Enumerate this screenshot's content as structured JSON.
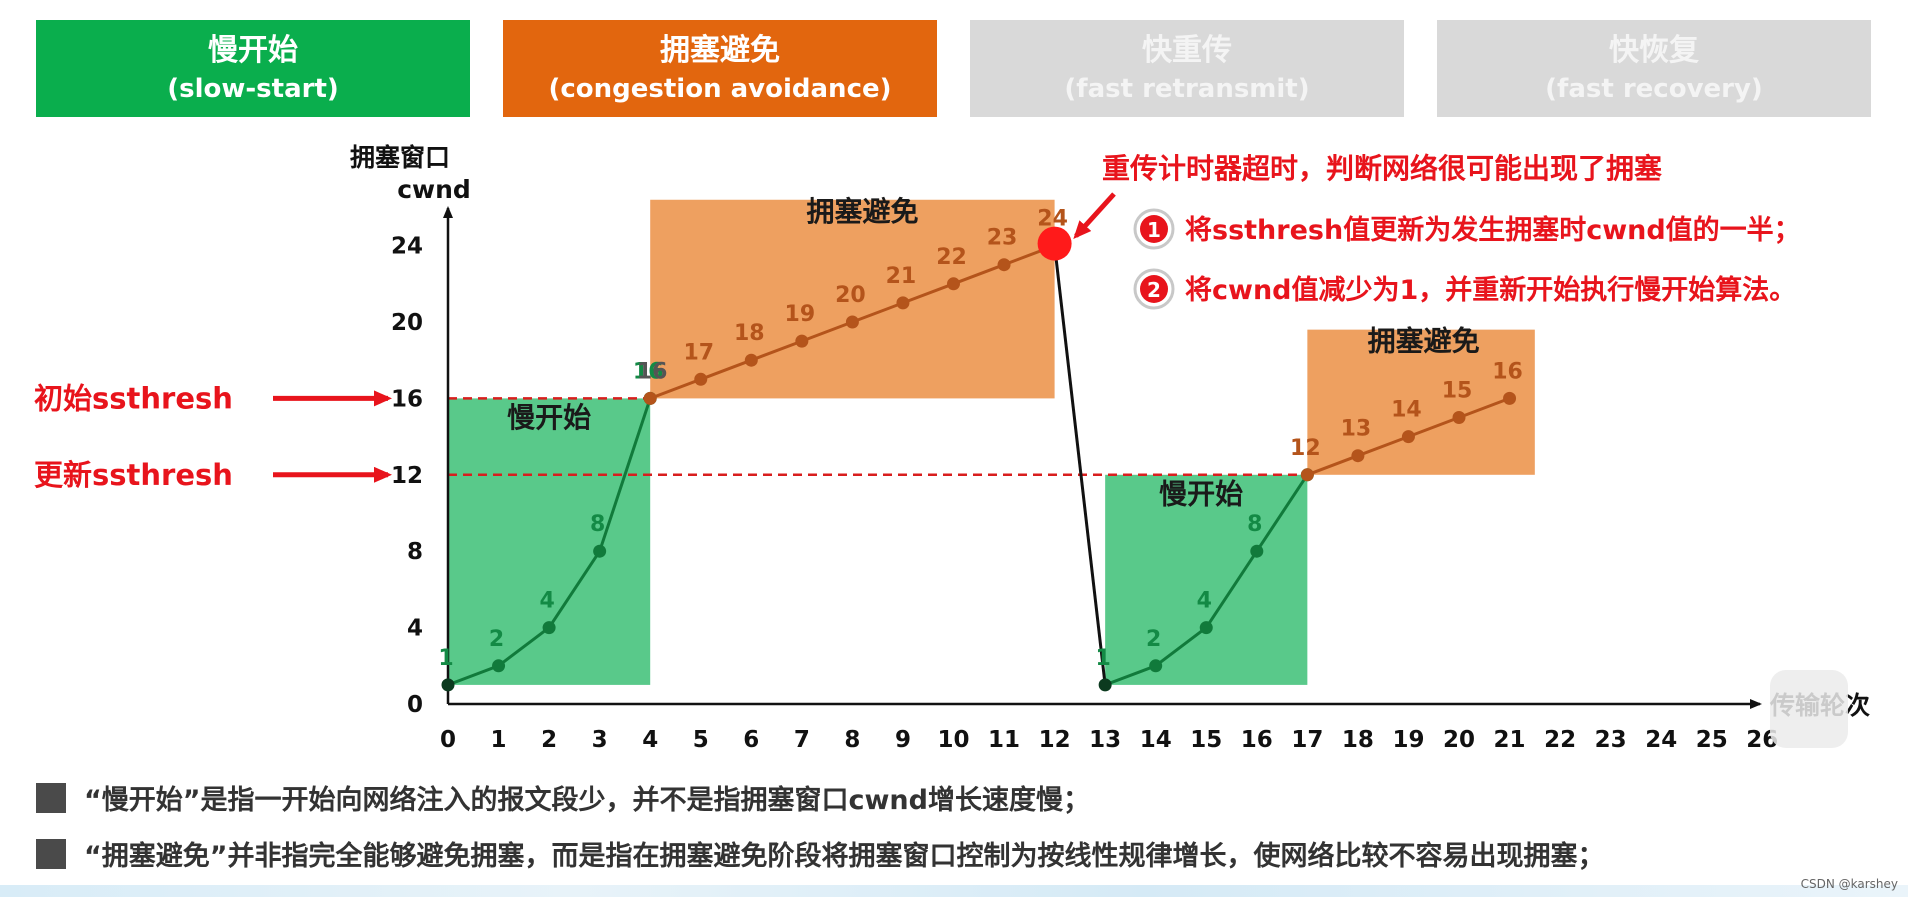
{
  "headers": [
    {
      "cn": "慢开始",
      "en": "(slow-start)",
      "style": "green"
    },
    {
      "cn": "拥塞避免",
      "en": "(congestion avoidance)",
      "style": "orange"
    },
    {
      "cn": "快重传",
      "en": "(fast retransmit)",
      "style": "gray"
    },
    {
      "cn": "快恢复",
      "en": "(fast recovery)",
      "style": "gray"
    }
  ],
  "chart_data": {
    "type": "line",
    "ylabel_line1": "拥塞窗口",
    "ylabel_line2": "cwnd",
    "xlabel": "传输轮次",
    "xticks": [
      0,
      1,
      2,
      3,
      4,
      5,
      6,
      7,
      8,
      9,
      10,
      11,
      12,
      13,
      14,
      15,
      16,
      17,
      18,
      19,
      20,
      21,
      22,
      23,
      24,
      25,
      26
    ],
    "yticks": [
      0,
      4,
      8,
      12,
      16,
      20,
      24
    ],
    "xlim": [
      0,
      26
    ],
    "ylim": [
      0,
      24
    ],
    "series": [
      {
        "phase": "slow-start",
        "x": [
          0,
          1,
          2,
          3,
          4
        ],
        "y": [
          1,
          2,
          4,
          8,
          16
        ],
        "labels": [
          "1",
          "2",
          "4",
          "8",
          "16"
        ],
        "color": "#117a3b"
      },
      {
        "phase": "congestion-avoidance",
        "x": [
          4,
          5,
          6,
          7,
          8,
          9,
          10,
          11,
          12
        ],
        "y": [
          16,
          17,
          18,
          19,
          20,
          21,
          22,
          23,
          24
        ],
        "labels": [
          "17",
          "18",
          "19",
          "20",
          "21",
          "22",
          "23",
          "24"
        ],
        "color": "#b4541b"
      },
      {
        "phase": "timeout-drop",
        "x": [
          12,
          13
        ],
        "y": [
          24,
          1
        ],
        "color": "#111111"
      },
      {
        "phase": "slow-start",
        "x": [
          13,
          14,
          15,
          16,
          17
        ],
        "y": [
          1,
          2,
          4,
          8,
          12
        ],
        "labels": [
          "1",
          "2",
          "4",
          "8"
        ],
        "color": "#117a3b"
      },
      {
        "phase": "congestion-avoidance",
        "x": [
          17,
          18,
          19,
          20,
          21
        ],
        "y": [
          12,
          13,
          14,
          15,
          16
        ],
        "labels": [
          "12",
          "13",
          "14",
          "15",
          "16"
        ],
        "color": "#b4541b"
      }
    ],
    "regions": [
      {
        "label": "慢开始",
        "x": [
          0,
          4
        ],
        "y": [
          1,
          16
        ],
        "color": "#59c98a"
      },
      {
        "label": "拥塞避免",
        "x": [
          4,
          12
        ],
        "y": [
          16,
          26.4
        ],
        "color": "#eea060"
      },
      {
        "label": "慢开始",
        "x": [
          13,
          17
        ],
        "y": [
          1,
          12
        ],
        "color": "#59c98a"
      },
      {
        "label": "拥塞避免",
        "x": [
          17,
          21.5
        ],
        "y": [
          12,
          19.6
        ],
        "color": "#eea060"
      }
    ],
    "thresholds": [
      {
        "label": "初始ssthresh",
        "y": 16
      },
      {
        "label": "更新ssthresh",
        "y": 12
      }
    ],
    "timeout_point": {
      "x": 12,
      "y": 24,
      "color": "#ff1a1a"
    },
    "annotation": {
      "title": "重传计时器超时，判断网络很可能出现了拥塞",
      "items": [
        {
          "num": "1",
          "text": "将ssthresh值更新为发生拥塞时cwnd值的一半；"
        },
        {
          "num": "2",
          "text": "将cwnd值减少为1，并重新开始执行慢开始算法。"
        }
      ]
    }
  },
  "notes": [
    "“慢开始”是指一开始向网络注入的报文段少，并不是指拥塞窗口cwnd增长速度慢；",
    "“拥塞避免”并非指完全能够避免拥塞，而是指在拥塞避免阶段将拥塞窗口控制为按线性规律增长，使网络比较不容易出现拥塞；"
  ],
  "watermark": "CSDN @karshey"
}
